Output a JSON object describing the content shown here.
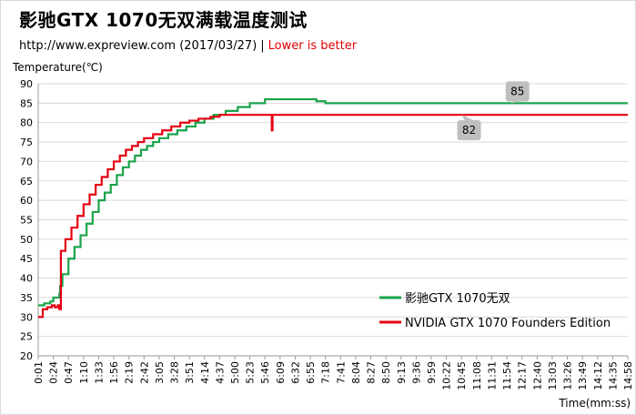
{
  "title": "影驰GTX 1070无双满载温度测试",
  "subtitle": {
    "source": "http://www.expreview.com (2017/03/27)",
    "separator": "|",
    "note": "Lower is better"
  },
  "chart_data": {
    "type": "line",
    "ylabel": "Temperature(℃)",
    "xlabel": "Time(mm:ss)",
    "ylim": [
      20,
      90
    ],
    "yticks": [
      20,
      25,
      30,
      35,
      40,
      45,
      50,
      55,
      60,
      65,
      70,
      75,
      80,
      85,
      90
    ],
    "x_categories": [
      "0:01",
      "0:24",
      "0:47",
      "1:10",
      "1:33",
      "1:56",
      "2:19",
      "2:42",
      "3:05",
      "3:28",
      "3:51",
      "4:14",
      "4:37",
      "5:00",
      "5:23",
      "5:46",
      "6:09",
      "6:32",
      "6:55",
      "7:18",
      "7:41",
      "8:04",
      "8:27",
      "8:50",
      "9:13",
      "9:36",
      "9:59",
      "10:22",
      "10:45",
      "11:08",
      "11:31",
      "11:54",
      "12:17",
      "12:40",
      "13:03",
      "13:26",
      "13:49",
      "14:12",
      "14:35",
      "14:58"
    ],
    "grid": true,
    "legend_position": "bottom-right",
    "series": [
      {
        "name": "影驰GTX 1070无双",
        "color": "#1aa34a",
        "points": [
          [
            0,
            33
          ],
          [
            0.4,
            33.5
          ],
          [
            0.8,
            34
          ],
          [
            1,
            35
          ],
          [
            1.4,
            36
          ],
          [
            1.45,
            38
          ],
          [
            1.6,
            41
          ],
          [
            2,
            45
          ],
          [
            2.4,
            48
          ],
          [
            2.8,
            51
          ],
          [
            3.2,
            54
          ],
          [
            3.6,
            57
          ],
          [
            4,
            60
          ],
          [
            4.4,
            62
          ],
          [
            4.8,
            64
          ],
          [
            5.2,
            66.5
          ],
          [
            5.6,
            68.5
          ],
          [
            6,
            70
          ],
          [
            6.4,
            71.5
          ],
          [
            6.8,
            73
          ],
          [
            7.2,
            74
          ],
          [
            7.6,
            75
          ],
          [
            8,
            76
          ],
          [
            8.6,
            77
          ],
          [
            9.2,
            78
          ],
          [
            9.8,
            79
          ],
          [
            10.4,
            80
          ],
          [
            11,
            81
          ],
          [
            11.6,
            82
          ],
          [
            12.4,
            83
          ],
          [
            13.2,
            84
          ],
          [
            14,
            85
          ],
          [
            14.6,
            85
          ],
          [
            15,
            86
          ],
          [
            16,
            86
          ],
          [
            17,
            86
          ],
          [
            18,
            86
          ],
          [
            18.4,
            85.5
          ],
          [
            19,
            85
          ],
          [
            20,
            85
          ],
          [
            22,
            85
          ],
          [
            24,
            85
          ],
          [
            26,
            85
          ],
          [
            28,
            85
          ],
          [
            30,
            85
          ],
          [
            32,
            85
          ],
          [
            34,
            85
          ],
          [
            36,
            85
          ],
          [
            38,
            85
          ],
          [
            39,
            85
          ]
        ],
        "callout": {
          "label": "85",
          "x": 31.7,
          "y": 85
        }
      },
      {
        "name": "NVIDIA GTX 1070 Founders Edition",
        "color": "#e60012",
        "points": [
          [
            0,
            30
          ],
          [
            0.3,
            32
          ],
          [
            0.6,
            32.5
          ],
          [
            0.9,
            33
          ],
          [
            1.1,
            32.5
          ],
          [
            1.3,
            33
          ],
          [
            1.4,
            32
          ],
          [
            1.5,
            47
          ],
          [
            1.8,
            50
          ],
          [
            2.2,
            53
          ],
          [
            2.6,
            56
          ],
          [
            3,
            59
          ],
          [
            3.4,
            61.5
          ],
          [
            3.8,
            64
          ],
          [
            4.2,
            66
          ],
          [
            4.6,
            68
          ],
          [
            5,
            70
          ],
          [
            5.4,
            71.5
          ],
          [
            5.8,
            73
          ],
          [
            6.2,
            74
          ],
          [
            6.6,
            75
          ],
          [
            7,
            76
          ],
          [
            7.6,
            77
          ],
          [
            8.2,
            78
          ],
          [
            8.8,
            79
          ],
          [
            9.4,
            80
          ],
          [
            10,
            80.5
          ],
          [
            10.6,
            81
          ],
          [
            11.4,
            81.5
          ],
          [
            12,
            82
          ],
          [
            13,
            82
          ],
          [
            14,
            82
          ],
          [
            14.5,
            82
          ],
          [
            15,
            82
          ],
          [
            15.4,
            82
          ],
          [
            15.45,
            78
          ],
          [
            15.5,
            82
          ],
          [
            16,
            82
          ],
          [
            17,
            82
          ],
          [
            18,
            82
          ],
          [
            20,
            82
          ],
          [
            22,
            82
          ],
          [
            24,
            82
          ],
          [
            26,
            82
          ],
          [
            28,
            82
          ],
          [
            30,
            82
          ],
          [
            32,
            82
          ],
          [
            34,
            82
          ],
          [
            36,
            82
          ],
          [
            38,
            82
          ],
          [
            39,
            82
          ]
        ],
        "callout": {
          "label": "82",
          "x": 28.5,
          "y": 82
        }
      }
    ]
  }
}
